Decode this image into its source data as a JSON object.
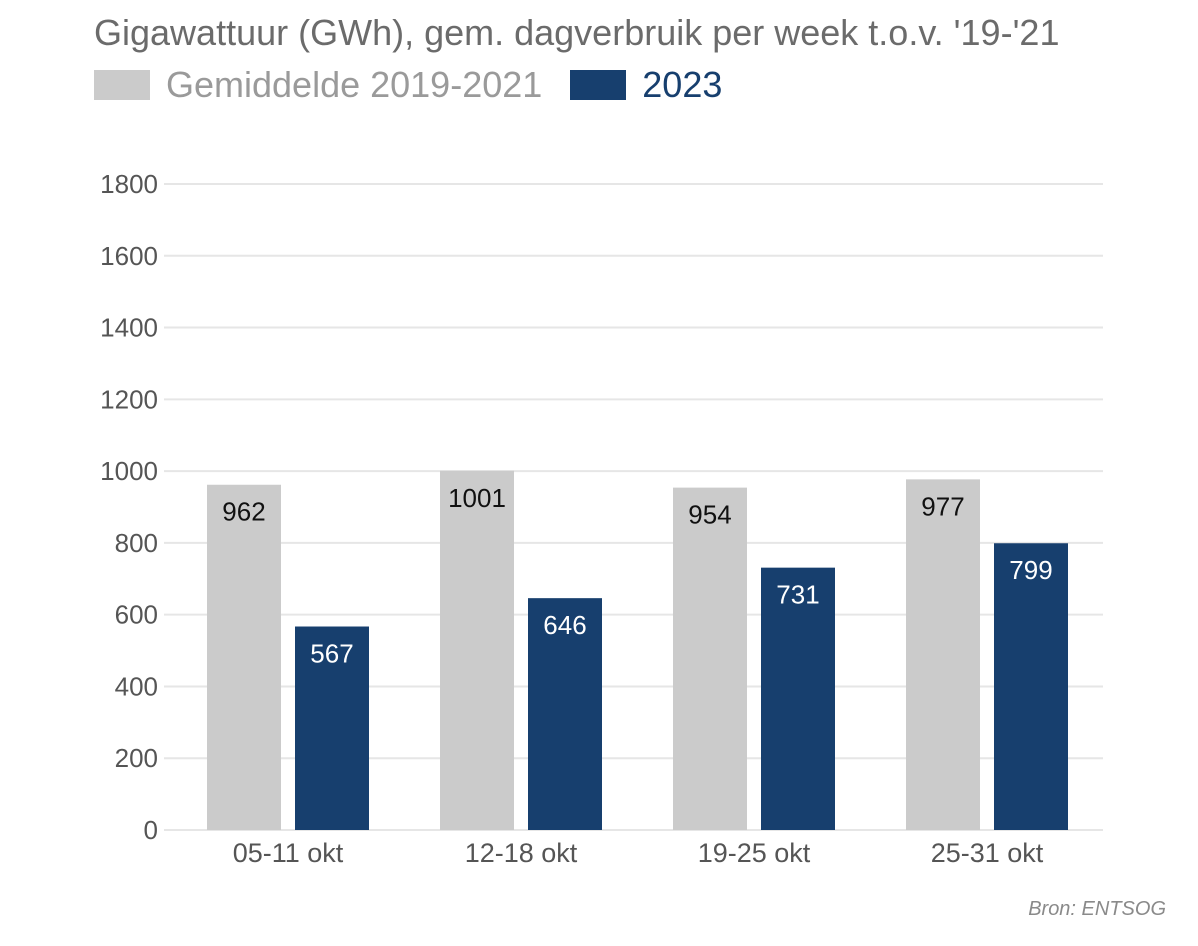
{
  "chart_data": {
    "type": "bar",
    "title": "Gigawattuur (GWh), gem. dagverbruik per week t.o.v. '19-'21",
    "categories": [
      "05-11 okt",
      "12-18 okt",
      "19-25 okt",
      "25-31 okt"
    ],
    "series": [
      {
        "name": "Gemiddelde 2019-2021",
        "values": [
          962,
          1001,
          954,
          977
        ],
        "color": "#cbcbcb",
        "label_color": "#111111"
      },
      {
        "name": "2023",
        "values": [
          567,
          646,
          731,
          799
        ],
        "color": "#173f6e",
        "label_color": "#ffffff"
      }
    ],
    "yticks": [
      "0",
      "200",
      "400",
      "600",
      "800",
      "1000",
      "1200",
      "1400",
      "1600",
      "1800"
    ],
    "ylim": [
      0,
      1800
    ],
    "grid": true,
    "legend_position": "top-left",
    "xlabel": "",
    "ylabel": ""
  },
  "source": "Bron: ENTSOG",
  "colors": {
    "grid": "#e6e6e6",
    "axis_text": "#555555",
    "title_text": "#6b6b6b",
    "legend_text_0": "#9a9a9a",
    "legend_text_1": "#173f6e"
  }
}
